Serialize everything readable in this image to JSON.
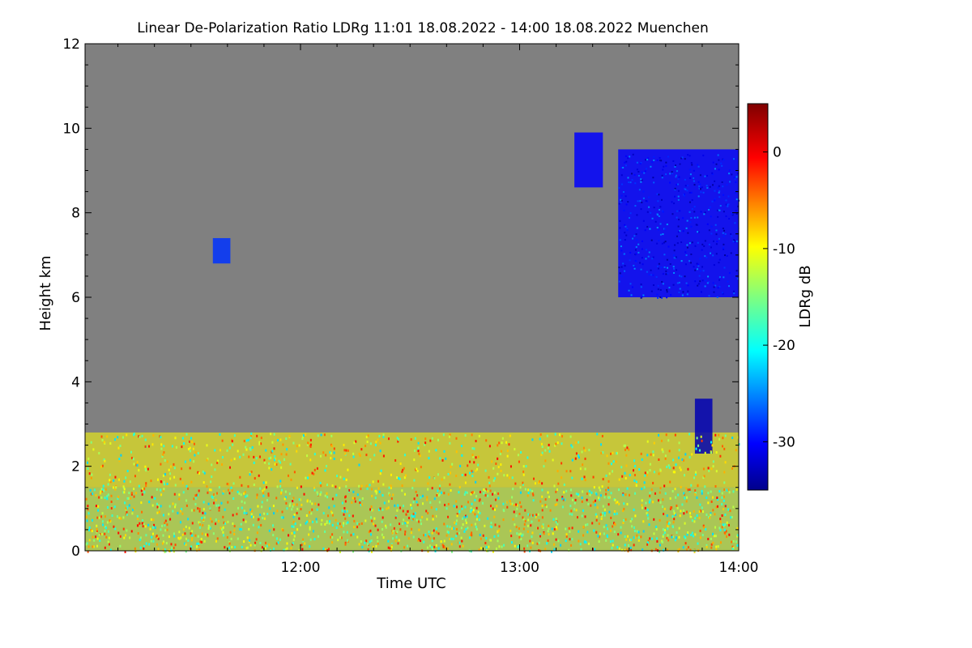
{
  "chart_data": {
    "type": "heatmap",
    "title": "Linear De-Polarization Ratio LDRg   11:01 18.08.2022 - 14:00 18.08.2022 Muenchen",
    "xlabel": "Time UTC",
    "ylabel": "Height km",
    "colorbar_label": "LDRg dB",
    "x_range_hours": [
      11.0167,
      14.0
    ],
    "y_range_km": [
      0,
      12
    ],
    "x_ticks": [
      {
        "value": 12.0,
        "label": "12:00"
      },
      {
        "value": 13.0,
        "label": "13:00"
      },
      {
        "value": 14.0,
        "label": "14:00"
      }
    ],
    "y_ticks": [
      {
        "value": 0,
        "label": "0"
      },
      {
        "value": 2,
        "label": "2"
      },
      {
        "value": 4,
        "label": "4"
      },
      {
        "value": 6,
        "label": "6"
      },
      {
        "value": 8,
        "label": "8"
      },
      {
        "value": 10,
        "label": "10"
      },
      {
        "value": 12,
        "label": "12"
      }
    ],
    "colorbar_range_db": [
      -35,
      5
    ],
    "colorbar_ticks": [
      {
        "value": 0,
        "label": "0"
      },
      {
        "value": -10,
        "label": "-10"
      },
      {
        "value": -20,
        "label": "-20"
      },
      {
        "value": -30,
        "label": "-30"
      }
    ],
    "background_color": "#808080",
    "features": [
      {
        "name": "boundary-layer",
        "time_start": 11.0167,
        "time_end": 14.0,
        "height_min_km": 0,
        "height_max_km": 1.5,
        "ldr_db": -12
      },
      {
        "name": "upper-noise-layer",
        "time_start": 11.0167,
        "time_end": 14.0,
        "height_min_km": 1.5,
        "height_max_km": 2.8,
        "ldr_db": -10
      },
      {
        "name": "cirrus-cloud",
        "time_start": 13.45,
        "time_end": 14.0,
        "height_min_km": 6.0,
        "height_max_km": 9.5,
        "ldr_db": -30
      },
      {
        "name": "cirrus-fragment",
        "time_start": 13.25,
        "time_end": 13.38,
        "height_min_km": 8.6,
        "height_max_km": 9.9,
        "ldr_db": -30
      },
      {
        "name": "small-cloud",
        "time_start": 11.6,
        "time_end": 11.68,
        "height_min_km": 6.8,
        "height_max_km": 7.4,
        "ldr_db": -28
      },
      {
        "name": "mid-cloud",
        "time_start": 13.8,
        "time_end": 13.88,
        "height_min_km": 2.3,
        "height_max_km": 3.6,
        "ldr_db": -33
      }
    ]
  }
}
